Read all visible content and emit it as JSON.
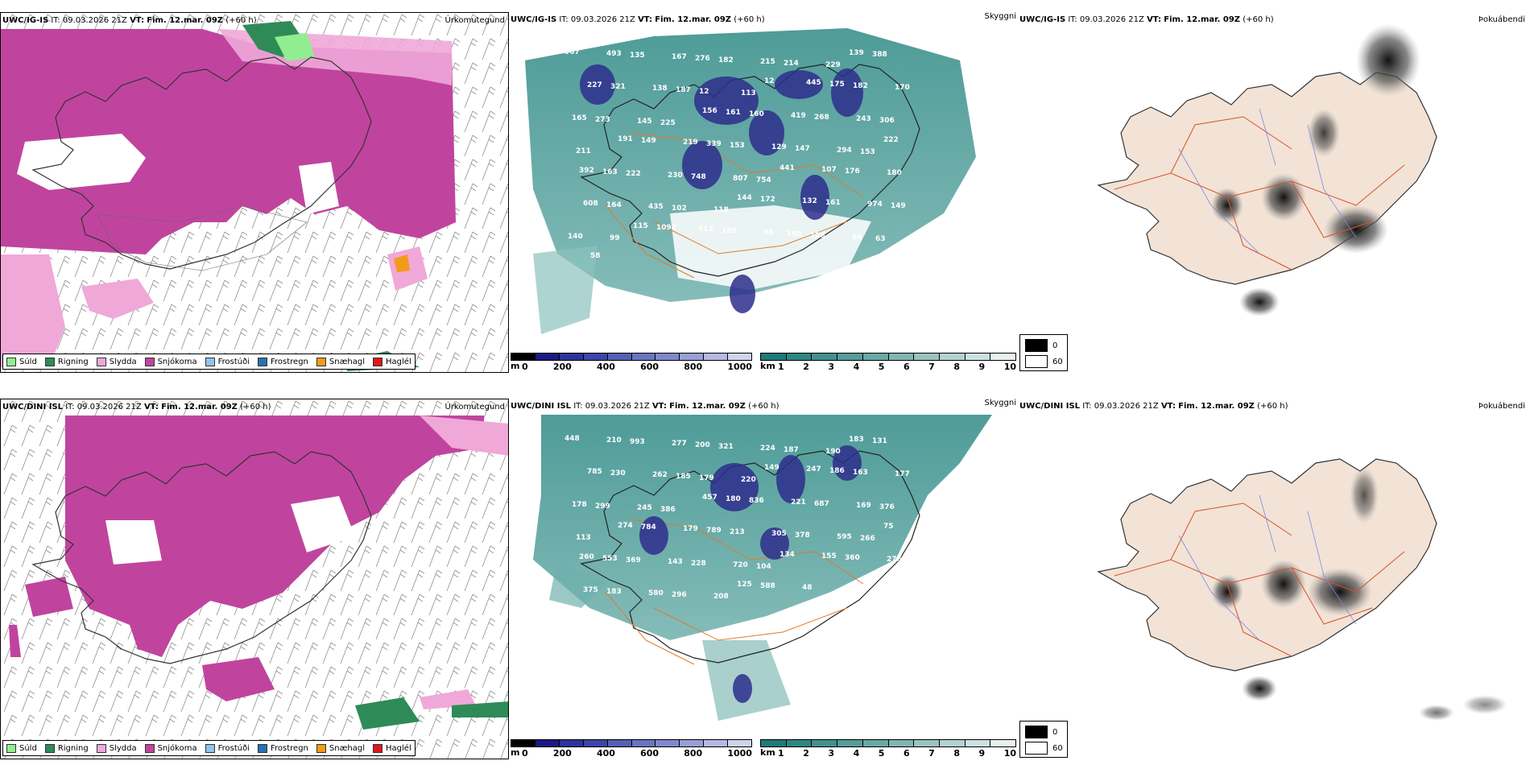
{
  "top": {
    "precip": {
      "model": "UWC/IG-IS",
      "it_label": "IT:",
      "it": "09.03.2026 21Z",
      "vt_label": "VT:",
      "vt": "Fim. 12.mar. 09Z",
      "lead": "(+60 h)",
      "type": "Úrkomutegund"
    },
    "visibility": {
      "model": "UWC/IG-IS",
      "it_label": "IT:",
      "it": "09.03.2026 21Z",
      "vt_label": "VT:",
      "vt": "Fim. 12.mar. 09Z",
      "lead": "(+60 h)",
      "type": "Skyggni",
      "labels": [
        "967",
        "493",
        "135",
        "167",
        "276",
        "182",
        "215",
        "214",
        "229",
        "139",
        "388",
        "227",
        "321",
        "138",
        "187",
        "12",
        "113",
        "12",
        "445",
        "175",
        "182",
        "170",
        "165",
        "273",
        "145",
        "225",
        "156",
        "161",
        "160",
        "419",
        "268",
        "243",
        "306",
        "211",
        "191",
        "149",
        "219",
        "339",
        "153",
        "129",
        "147",
        "294",
        "153",
        "222",
        "392",
        "163",
        "222",
        "230",
        "748",
        "807",
        "754",
        "441",
        "107",
        "176",
        "180",
        "608",
        "164",
        "435",
        "102",
        "118",
        "144",
        "172",
        "132",
        "161",
        "974",
        "149",
        "140",
        "99",
        "115",
        "1092",
        "513",
        "198",
        "98",
        "188",
        "128",
        "66",
        "63",
        "58"
      ]
    },
    "fog": {
      "model": "UWC/IG-IS",
      "it_label": "IT:",
      "it": "09.03.2026 21Z",
      "vt_label": "VT:",
      "vt": "Fim. 12.mar. 09Z",
      "lead": "(+60 h)",
      "type": "Þokuábendi"
    }
  },
  "bottom": {
    "precip": {
      "model": "UWC/DINI ISL",
      "it_label": "IT:",
      "it": "09.03.2026 21Z",
      "vt_label": "VT:",
      "vt": "Fim. 12.mar. 09Z",
      "lead": "(+60 h)",
      "type": "Úrkomutegund"
    },
    "visibility": {
      "model": "UWC/DINI ISL",
      "it_label": "IT:",
      "it": "09.03.2026 21Z",
      "vt_label": "VT:",
      "vt": "Fim. 12.mar. 09Z",
      "lead": "(+60 h)",
      "type": "Skyggni",
      "labels": [
        "448",
        "210",
        "993",
        "277",
        "200",
        "321",
        "224",
        "187",
        "190",
        "183",
        "131",
        "785",
        "230",
        "262",
        "185",
        "179",
        "220",
        "149",
        "247",
        "186",
        "163",
        "177",
        "178",
        "299",
        "245",
        "386",
        "457",
        "180",
        "836",
        "221",
        "687",
        "169",
        "376",
        "113",
        "274",
        "784",
        "179",
        "789",
        "213",
        "305",
        "378",
        "595",
        "266",
        "75",
        "260",
        "553",
        "369",
        "143",
        "228",
        "720",
        "104",
        "134",
        "155",
        "360",
        "276",
        "375",
        "183",
        "580",
        "296",
        "208",
        "125",
        "588",
        "48"
      ]
    },
    "fog": {
      "model": "UWC/DINI ISL",
      "it_label": "IT:",
      "it": "09.03.2026 21Z",
      "vt_label": "VT:",
      "vt": "Fim. 12.mar. 09Z",
      "lead": "(+60 h)",
      "type": "Þokuábendi"
    }
  },
  "precip_legend": [
    {
      "label": "Súld",
      "color": "#90ee90"
    },
    {
      "label": "Rigning",
      "color": "#2e8b57"
    },
    {
      "label": "Slydda",
      "color": "#f0a8d8"
    },
    {
      "label": "Snjókoma",
      "color": "#c0449e"
    },
    {
      "label": "Frostúði",
      "color": "#8fc3f0"
    },
    {
      "label": "Frostregn",
      "color": "#2a6fb5"
    },
    {
      "label": "Snæhagl",
      "color": "#f29b1a"
    },
    {
      "label": "Haglél",
      "color": "#e0181b"
    }
  ],
  "height_bar": {
    "unit": "m",
    "ticks": [
      "0",
      "200",
      "400",
      "600",
      "800",
      "1000"
    ],
    "colors": [
      "#000000",
      "#1a1a80",
      "#2e3399",
      "#3d45a8",
      "#5560b5",
      "#6a75c0",
      "#8088cc",
      "#989fd6",
      "#b4b8e2",
      "#d0d3ee"
    ]
  },
  "ceiling_bar": {
    "unit": "km",
    "ticks": [
      "1",
      "2",
      "3",
      "4",
      "5",
      "6",
      "7",
      "8",
      "9",
      "10"
    ],
    "colors": [
      "#1f7a78",
      "#2e8683",
      "#42918e",
      "#569c99",
      "#6ba8a5",
      "#82b5b2",
      "#9ac3c0",
      "#b3d2cf",
      "#cce1df",
      "#e8f1f0"
    ]
  },
  "fog_legend": {
    "items": [
      "0",
      "60"
    ],
    "colors": [
      "#000000",
      "#ffffff"
    ]
  }
}
